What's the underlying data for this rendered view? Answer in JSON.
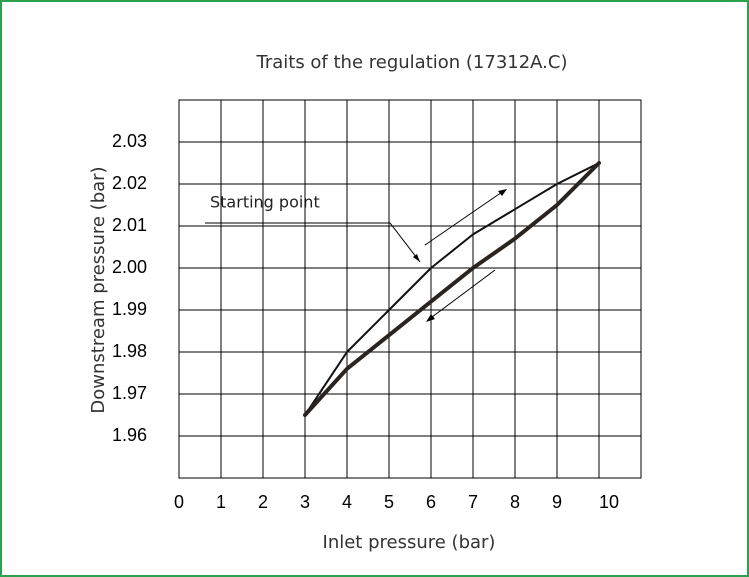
{
  "chart_data": {
    "type": "line",
    "title": "Traits of the regulation (17312A.C)",
    "xlabel": "Inlet pressure (bar)",
    "ylabel": "Downstream pressure (bar)",
    "annotation": "Starting point",
    "x": [
      3,
      4,
      5,
      6,
      7,
      8,
      9,
      10
    ],
    "series": [
      {
        "color": "#111111",
        "values": [
          1.965,
          1.98,
          1.99,
          2.0,
          2.008,
          2.014,
          2.02,
          2.025
        ]
      },
      {
        "color": "#2a2420",
        "values": [
          1.965,
          1.976,
          1.984,
          1.992,
          2.0,
          2.007,
          2.015,
          2.025
        ]
      }
    ],
    "xlim": [
      0,
      11
    ],
    "xticks": [
      0,
      1,
      2,
      3,
      4,
      5,
      6,
      7,
      8,
      9,
      10
    ],
    "ylim": [
      1.95,
      2.04
    ],
    "yticks": [
      1.96,
      1.97,
      1.98,
      1.99,
      {
        "value": 2,
        "label": "2.00"
      },
      2.01,
      2.02,
      2.03
    ],
    "grid": true
  }
}
